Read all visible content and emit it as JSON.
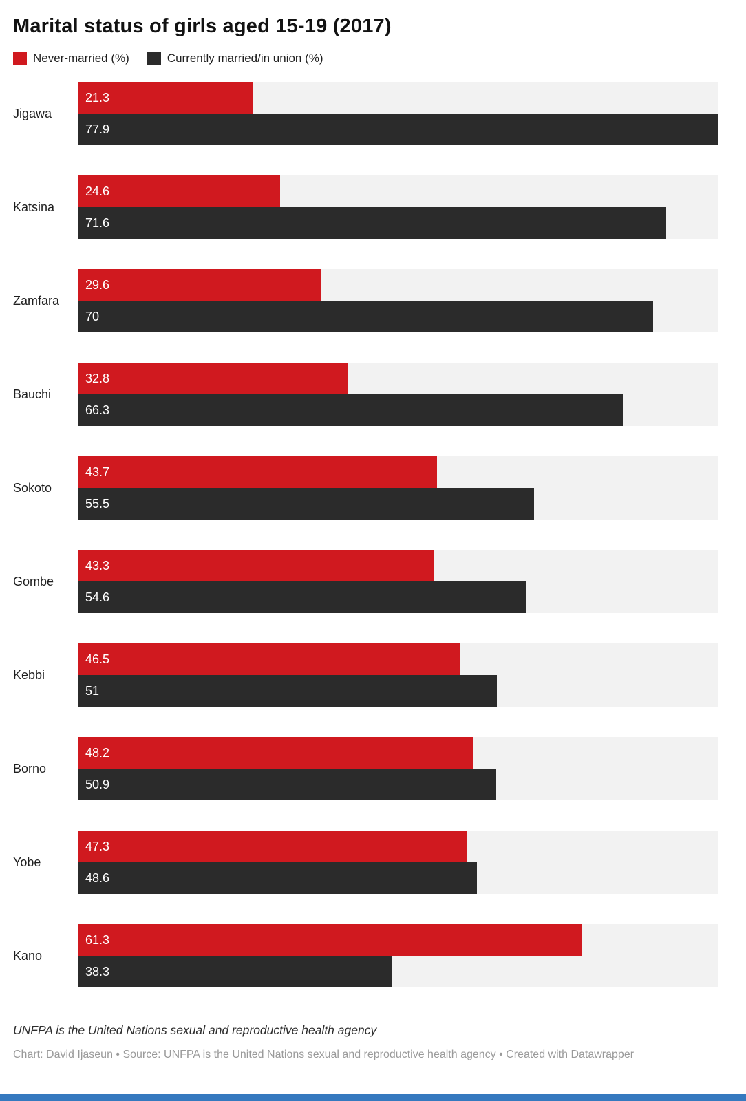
{
  "chart_data": {
    "type": "bar",
    "orientation": "horizontal",
    "title": "Marital status of girls aged 15-19 (2017)",
    "legend_position": "top",
    "grid": false,
    "xmax": 77.9,
    "categories": [
      "Jigawa",
      "Katsina",
      "Zamfara",
      "Bauchi",
      "Sokoto",
      "Gombe",
      "Kebbi",
      "Borno",
      "Yobe",
      "Kano"
    ],
    "series": [
      {
        "name": "Never-married (%)",
        "color": "#d0191f",
        "values": [
          21.3,
          24.6,
          29.6,
          32.8,
          43.7,
          43.3,
          46.5,
          48.2,
          47.3,
          61.3
        ]
      },
      {
        "name": "Currently married/in union (%)",
        "color": "#2b2b2b",
        "values": [
          77.9,
          71.6,
          70,
          66.3,
          55.5,
          54.6,
          51,
          50.9,
          48.6,
          38.3
        ]
      }
    ],
    "track_color": "#f2f2f2",
    "value_label_color": "#ffffff"
  },
  "footer": {
    "note": "UNFPA is the United Nations sexual and reproductive health agency",
    "credit": "Chart: David Ijaseun • Source: UNFPA is the United Nations sexual and reproductive health agency • Created with Datawrapper"
  },
  "colors": {
    "accent_bottom_bar": "#3579bf"
  }
}
